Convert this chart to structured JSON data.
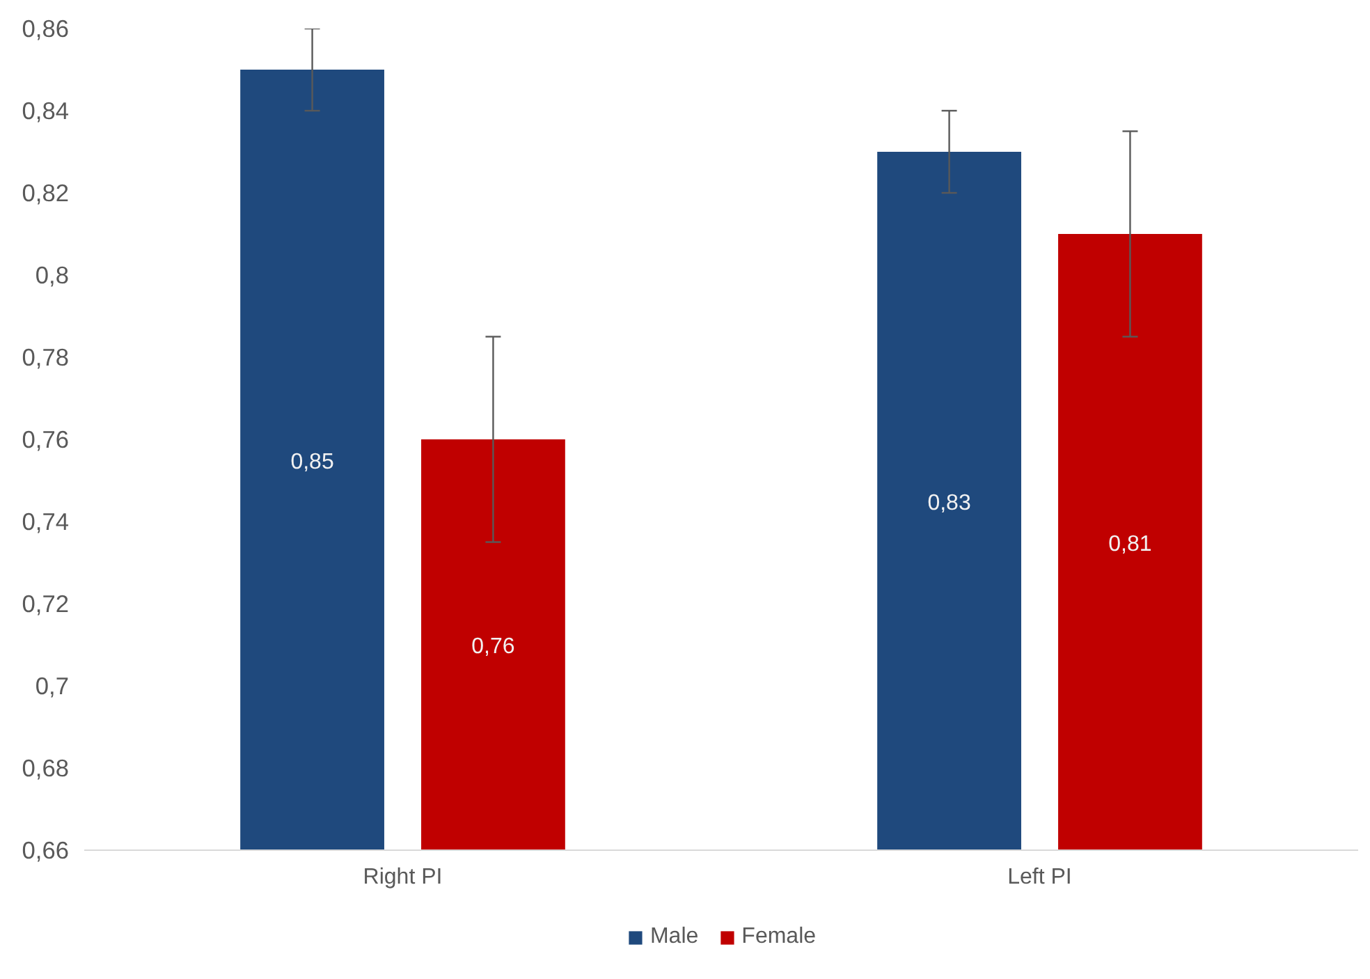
{
  "chart_data": {
    "type": "bar",
    "categories": [
      "Right PI",
      "Left PI"
    ],
    "series": [
      {
        "name": "Male",
        "color": "#1f497d",
        "values": [
          0.85,
          0.83
        ],
        "errors": [
          0.01,
          0.01
        ],
        "value_labels": [
          "0,85",
          "0,83"
        ]
      },
      {
        "name": "Female",
        "color": "#c00000",
        "values": [
          0.76,
          0.81
        ],
        "errors": [
          0.025,
          0.025
        ],
        "value_labels": [
          "0,76",
          "0,81"
        ]
      }
    ],
    "ylim": [
      0.66,
      0.86
    ],
    "yticks": [
      {
        "value": 0.66,
        "label": "0,66"
      },
      {
        "value": 0.68,
        "label": "0,68"
      },
      {
        "value": 0.7,
        "label": "0,7"
      },
      {
        "value": 0.72,
        "label": "0,72"
      },
      {
        "value": 0.74,
        "label": "0,74"
      },
      {
        "value": 0.76,
        "label": "0,76"
      },
      {
        "value": 0.78,
        "label": "0,78"
      },
      {
        "value": 0.8,
        "label": "0,8"
      },
      {
        "value": 0.82,
        "label": "0,82"
      },
      {
        "value": 0.84,
        "label": "0,84"
      },
      {
        "value": 0.86,
        "label": "0,86"
      }
    ],
    "grid": false,
    "legend": "bottom"
  }
}
